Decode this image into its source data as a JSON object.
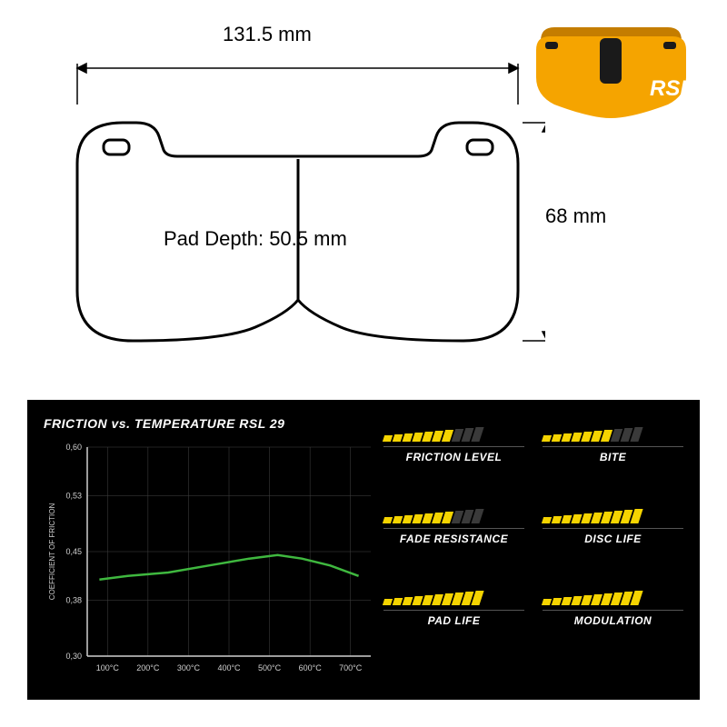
{
  "drawing": {
    "width_label": "131.5 mm",
    "height_label": "68 mm",
    "depth_label": "Pad Depth: 50.5 mm",
    "stroke_color": "#000000",
    "stroke_width": 2,
    "fill": "#ffffff"
  },
  "product": {
    "body_color": "#f5a400",
    "shadow_color": "#c47d00",
    "slot_color": "#1a1a1a",
    "logo_text": "RSL",
    "logo_color": "#ffffff"
  },
  "chart": {
    "title": "FRICTION vs. TEMPERATURE RSL 29",
    "y_label": "COEFFICIENT OF FRICTION",
    "y_ticks": [
      "0,30",
      "0,38",
      "0,45",
      "0,53",
      "0,60"
    ],
    "y_values": [
      0.3,
      0.38,
      0.45,
      0.53,
      0.6
    ],
    "x_ticks": [
      "100°C",
      "200°C",
      "300°C",
      "400°C",
      "500°C",
      "600°C",
      "700°C"
    ],
    "x_values": [
      100,
      200,
      300,
      400,
      500,
      600,
      700
    ],
    "xlim": [
      50,
      750
    ],
    "ylim": [
      0.3,
      0.6
    ],
    "curve_points": [
      [
        80,
        0.41
      ],
      [
        150,
        0.415
      ],
      [
        250,
        0.42
      ],
      [
        350,
        0.43
      ],
      [
        450,
        0.44
      ],
      [
        520,
        0.445
      ],
      [
        580,
        0.44
      ],
      [
        650,
        0.43
      ],
      [
        720,
        0.415
      ]
    ],
    "curve_color": "#3fb83f",
    "axis_color": "#d0d0d0",
    "grid_color": "#444444",
    "text_color": "#d0d0d0",
    "tick_fontsize": 9,
    "ylabel_fontsize": 8,
    "title_fontsize": 14,
    "background": "#000000"
  },
  "ratings": {
    "max_bars": 10,
    "filled_color": "#f5d400",
    "empty_color": "#3a3a3a",
    "label_color": "#ffffff",
    "label_fontsize": 12,
    "items": [
      {
        "label": "FRICTION LEVEL",
        "value": 7
      },
      {
        "label": "BITE",
        "value": 7
      },
      {
        "label": "FADE RESISTANCE",
        "value": 7
      },
      {
        "label": "DISC LIFE",
        "value": 10
      },
      {
        "label": "PAD LIFE",
        "value": 10
      },
      {
        "label": "MODULATION",
        "value": 10
      }
    ],
    "bar_heights": [
      7,
      8,
      9,
      10,
      11,
      12,
      13,
      14,
      15,
      16
    ]
  }
}
